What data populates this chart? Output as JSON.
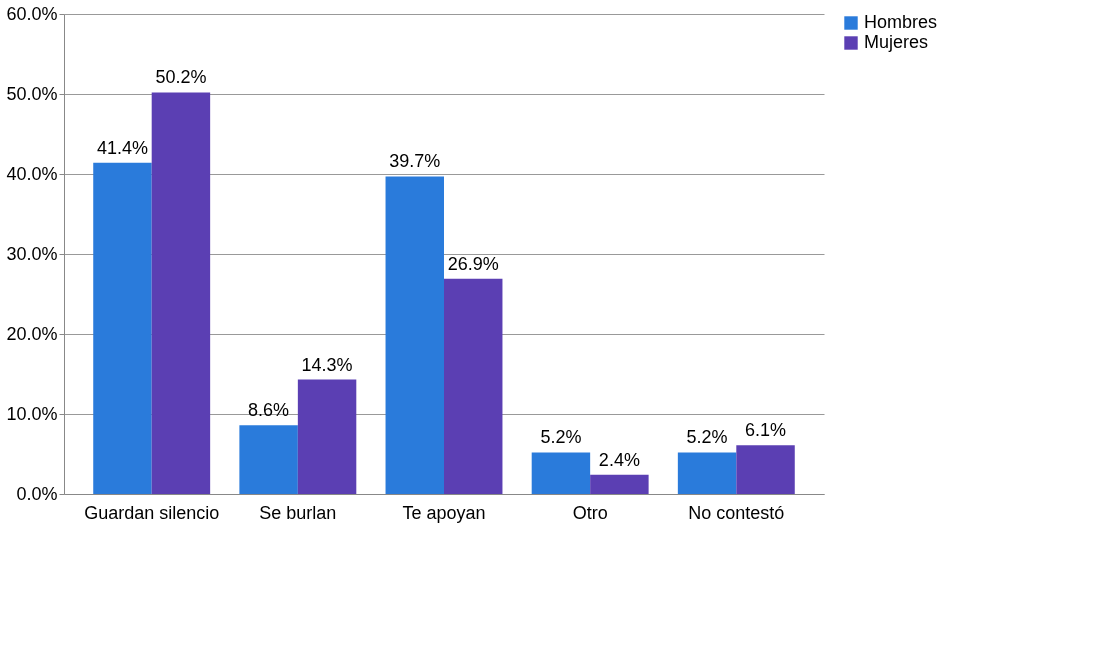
{
  "chart_data": {
    "type": "bar",
    "categories": [
      "Guardan silencio",
      "Se burlan",
      "Te apoyan",
      "Otro",
      "No contestó"
    ],
    "series": [
      {
        "name": "Hombres",
        "color": "#2a7bdb",
        "values": [
          41.4,
          8.6,
          39.7,
          5.2,
          5.2
        ],
        "value_labels": [
          "41.4%",
          "8.6%",
          "39.7%",
          "5.2%",
          "5.2%"
        ]
      },
      {
        "name": "Mujeres",
        "color": "#5b3fb3",
        "values": [
          50.2,
          14.3,
          26.9,
          2.4,
          6.1
        ],
        "value_labels": [
          "50.2%",
          "14.3%",
          "26.9%",
          "2.4%",
          "6.1%"
        ]
      }
    ],
    "ylim": [
      0,
      60
    ],
    "yticks": [
      {
        "value": 0,
        "label": "0.0%"
      },
      {
        "value": 10,
        "label": "10.0%"
      },
      {
        "value": 20,
        "label": "20.0%"
      },
      {
        "value": 30,
        "label": "30.0%"
      },
      {
        "value": 40,
        "label": "40.0%"
      },
      {
        "value": 50,
        "label": "50.0%"
      },
      {
        "value": 60,
        "label": "60.0%"
      }
    ],
    "grid": "y",
    "legend": "right"
  }
}
